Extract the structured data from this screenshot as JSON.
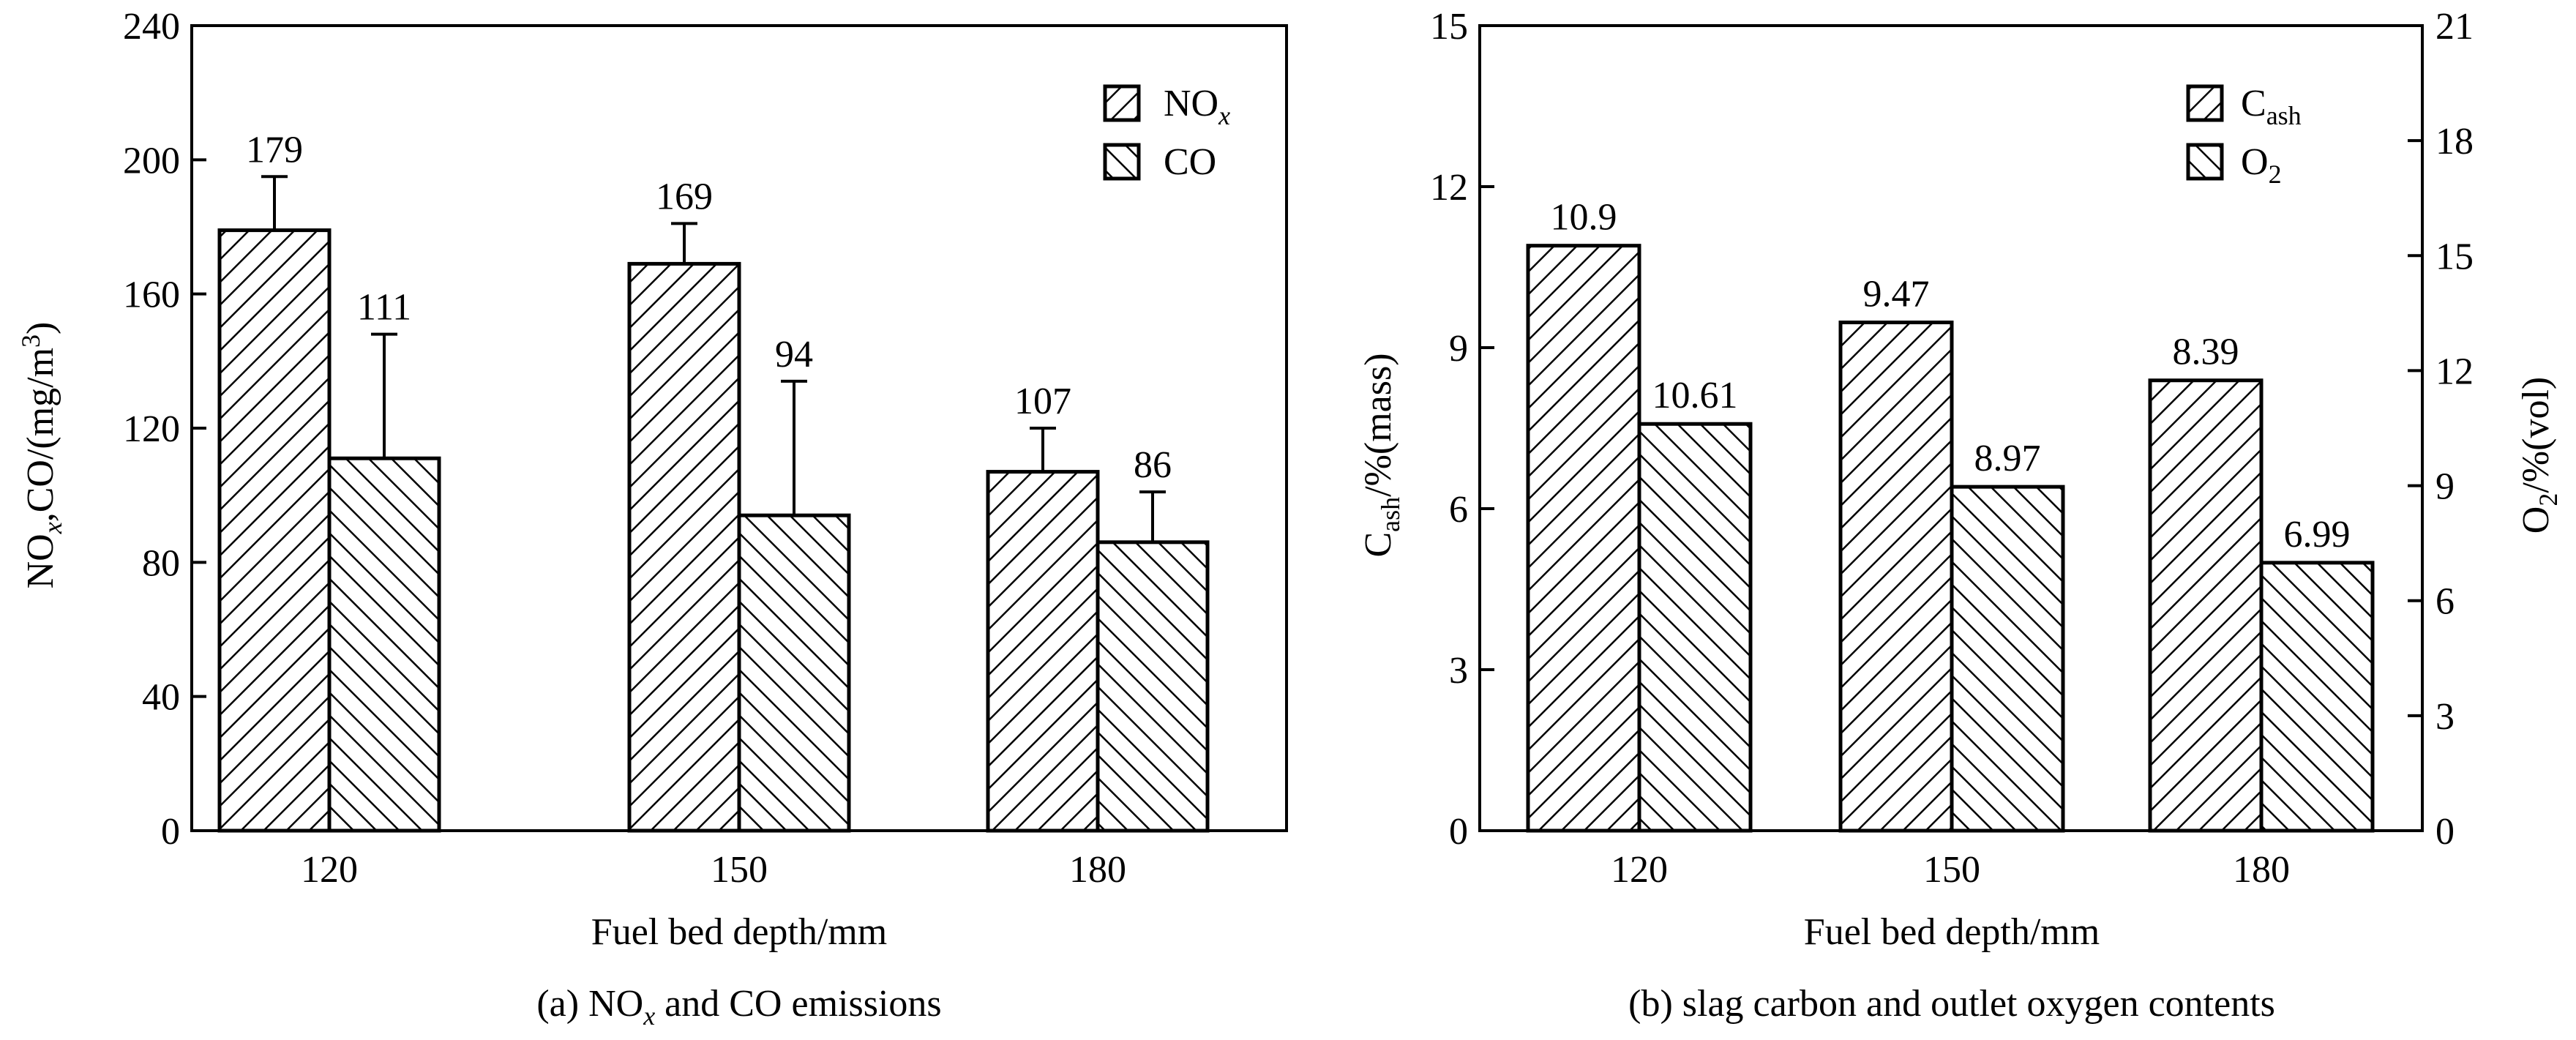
{
  "chart_data": [
    {
      "type": "bar",
      "title": "",
      "caption_prefix": "(a) NO",
      "caption_sub": "x",
      "caption_suffix": " and CO emissions",
      "xlabel": "Fuel bed depth/mm",
      "ylabel": {
        "a": "NO",
        "b": "x",
        "c": ",CO/(mg/m",
        "d": "3",
        "e": ")"
      },
      "categories": [
        "120",
        "150",
        "180"
      ],
      "ylim": [
        0,
        240
      ],
      "yticks": [
        "0",
        "40",
        "80",
        "120",
        "160",
        "200",
        "240"
      ],
      "series": [
        {
          "name": "NO",
          "name_sub": "x",
          "values": [
            179,
            169,
            107
          ],
          "labels": [
            "179",
            "169",
            "107"
          ],
          "error_upper": [
            16,
            12,
            13
          ]
        },
        {
          "name": "CO",
          "name_sub": "",
          "values": [
            111,
            94,
            86
          ],
          "labels": [
            "111",
            "94",
            "86"
          ],
          "error_upper": [
            37,
            40,
            15
          ]
        }
      ],
      "legend_position": "top-right"
    },
    {
      "type": "bar",
      "title": "",
      "caption": "(b) slag carbon and outlet oxygen contents",
      "xlabel": "Fuel bed depth/mm",
      "ylabel_left": {
        "a": "C",
        "b": "ash",
        "c": "/%(mass)"
      },
      "ylabel_right": {
        "a": "O",
        "b": "2",
        "c": "/%(vol)"
      },
      "categories": [
        "120",
        "150",
        "180"
      ],
      "ylim_left": [
        0,
        15
      ],
      "yticks_left": [
        "0",
        "3",
        "6",
        "9",
        "12",
        "15"
      ],
      "ylim_right": [
        0,
        21
      ],
      "yticks_right": [
        "0",
        "3",
        "6",
        "9",
        "12",
        "15",
        "18",
        "21"
      ],
      "series": [
        {
          "name": "C",
          "name_sub": "ash",
          "axis": "left",
          "values": [
            10.9,
            9.47,
            8.39
          ],
          "labels": [
            "10.9",
            "9.47",
            "8.39"
          ]
        },
        {
          "name": "O",
          "name_sub": "2",
          "axis": "right",
          "values": [
            10.61,
            8.97,
            6.99
          ],
          "labels": [
            "10.61",
            "8.97",
            "6.99"
          ]
        }
      ],
      "legend_position": "top-right"
    }
  ]
}
